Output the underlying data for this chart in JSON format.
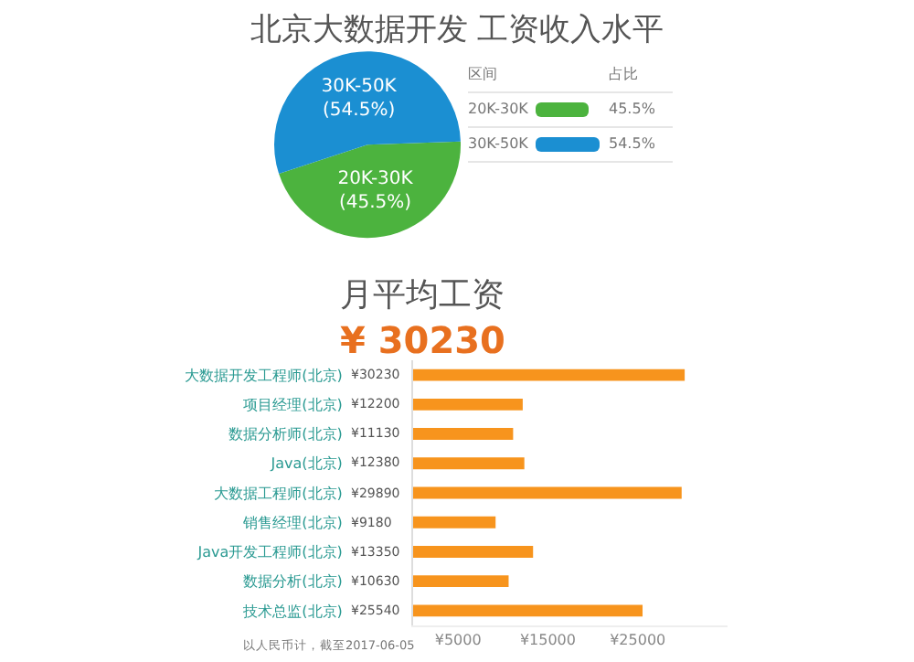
{
  "chart_data": [
    {
      "type": "pie",
      "title": "北京大数据开发 工资收入水平",
      "legend_title": "区间",
      "annotations": [
        "占比",
        "45.5%",
        "54.5%"
      ],
      "categories": [
        "20K-30K",
        "30K-50K"
      ],
      "values": [
        45.5,
        54.5
      ],
      "value_labels": [
        "(45.5%)",
        "(54.5%)"
      ],
      "colors": [
        "#4cb33e",
        "#1b8fd2"
      ],
      "legend": "right"
    },
    {
      "type": "bar",
      "orientation": "horizontal",
      "title": "月平均工资",
      "subtitle": "¥ 30230",
      "categories": [
        "大数据开发工程师(北京)",
        "项目经理(北京)",
        "数据分析师(北京)",
        "Java(北京)",
        "大数据工程师(北京)",
        "销售经理(北京)",
        "Java开发工程师(北京)",
        "数据分析(北京)",
        "技术总监(北京)"
      ],
      "values": [
        30230,
        12200,
        11130,
        12380,
        29890,
        9180,
        13350,
        10630,
        25540
      ],
      "value_labels": [
        "¥30230",
        "¥12200",
        "¥11130",
        "¥12380",
        "¥29890",
        "¥9180",
        "¥13350",
        "¥10630",
        "¥25540"
      ],
      "color": "#f7941d",
      "xlim": [
        0,
        35000
      ],
      "xticks": [
        {
          "value": 5000,
          "label": "¥5000"
        },
        {
          "value": 15000,
          "label": "¥15000"
        },
        {
          "value": 25000,
          "label": "¥25000"
        }
      ],
      "grid": false,
      "annotations": [
        "以人民币计，截至2017-06-05"
      ]
    }
  ]
}
